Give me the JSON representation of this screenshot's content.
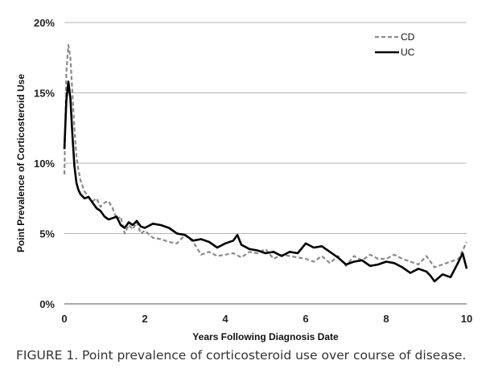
{
  "caption": "FIGURE 1.  Point prevalence of corticosteroid use over course of disease.",
  "chart_data": {
    "type": "line",
    "title": "",
    "xlabel": "Years Following Diagnosis Date",
    "ylabel": "Point Prevalence of Corticosteroid Use",
    "xlim": [
      0,
      10
    ],
    "ylim": [
      0,
      20
    ],
    "x_ticks": [
      "0",
      "2",
      "4",
      "6",
      "8",
      "10"
    ],
    "y_ticks": [
      "0%",
      "5%",
      "10%",
      "15%",
      "20%"
    ],
    "grid": "horizontal",
    "legend_position": "top-right",
    "series": [
      {
        "name": "CD",
        "style": "dashed",
        "color": "#8a8a8a",
        "x": [
          0,
          0.05,
          0.1,
          0.15,
          0.2,
          0.25,
          0.3,
          0.35,
          0.4,
          0.5,
          0.6,
          0.7,
          0.8,
          0.9,
          1.0,
          1.1,
          1.2,
          1.3,
          1.4,
          1.5,
          1.6,
          1.7,
          1.8,
          1.9,
          2.0,
          2.2,
          2.4,
          2.6,
          2.8,
          3.0,
          3.2,
          3.4,
          3.6,
          3.8,
          4.0,
          4.2,
          4.4,
          4.6,
          4.8,
          5.0,
          5.2,
          5.4,
          5.6,
          5.8,
          6.0,
          6.2,
          6.4,
          6.6,
          6.8,
          7.0,
          7.2,
          7.4,
          7.6,
          7.8,
          8.0,
          8.2,
          8.4,
          8.6,
          8.8,
          9.0,
          9.2,
          9.4,
          9.6,
          9.8,
          10.0
        ],
        "values": [
          9.2,
          16.5,
          18.4,
          17.5,
          15.0,
          12.5,
          10.5,
          9.5,
          8.8,
          8.0,
          7.6,
          7.3,
          7.5,
          6.9,
          7.2,
          7.3,
          6.8,
          6.0,
          6.2,
          5.0,
          5.6,
          5.3,
          5.8,
          5.0,
          5.2,
          4.7,
          4.6,
          4.4,
          4.3,
          4.9,
          4.4,
          3.5,
          3.7,
          3.4,
          3.5,
          3.6,
          3.3,
          3.7,
          3.6,
          3.9,
          3.2,
          3.5,
          3.4,
          3.3,
          3.2,
          3.0,
          3.4,
          2.9,
          3.4,
          2.7,
          3.4,
          3.1,
          3.5,
          3.2,
          3.2,
          3.5,
          3.2,
          3.0,
          2.8,
          3.4,
          2.6,
          2.8,
          3.0,
          3.2,
          4.4
        ]
      },
      {
        "name": "UC",
        "style": "solid",
        "color": "#000000",
        "x": [
          0,
          0.05,
          0.1,
          0.15,
          0.2,
          0.25,
          0.3,
          0.35,
          0.4,
          0.5,
          0.6,
          0.7,
          0.8,
          0.9,
          1.0,
          1.1,
          1.2,
          1.3,
          1.4,
          1.5,
          1.6,
          1.7,
          1.8,
          1.9,
          2.0,
          2.2,
          2.4,
          2.6,
          2.8,
          3.0,
          3.2,
          3.4,
          3.6,
          3.8,
          4.0,
          4.2,
          4.3,
          4.4,
          4.6,
          4.8,
          5.0,
          5.2,
          5.4,
          5.6,
          5.8,
          6.0,
          6.2,
          6.4,
          6.6,
          6.8,
          7.0,
          7.2,
          7.4,
          7.6,
          7.8,
          8.0,
          8.2,
          8.4,
          8.6,
          8.8,
          9.0,
          9.1,
          9.2,
          9.4,
          9.6,
          9.8,
          9.9,
          10.0
        ],
        "values": [
          11.0,
          14.5,
          15.8,
          14.6,
          12.0,
          9.8,
          8.6,
          8.1,
          7.8,
          7.5,
          7.6,
          7.2,
          6.8,
          6.6,
          6.2,
          6.0,
          6.1,
          6.2,
          5.6,
          5.4,
          5.8,
          5.6,
          5.9,
          5.5,
          5.4,
          5.7,
          5.6,
          5.4,
          5.0,
          4.9,
          4.5,
          4.6,
          4.4,
          4.0,
          4.3,
          4.5,
          4.9,
          4.2,
          3.9,
          3.8,
          3.6,
          3.7,
          3.4,
          3.7,
          3.6,
          4.3,
          4.0,
          4.1,
          3.7,
          3.3,
          2.8,
          3.0,
          3.1,
          2.7,
          2.8,
          3.0,
          2.9,
          2.6,
          2.2,
          2.5,
          2.3,
          2.0,
          1.6,
          2.1,
          1.9,
          3.0,
          3.6,
          2.5
        ]
      }
    ]
  }
}
